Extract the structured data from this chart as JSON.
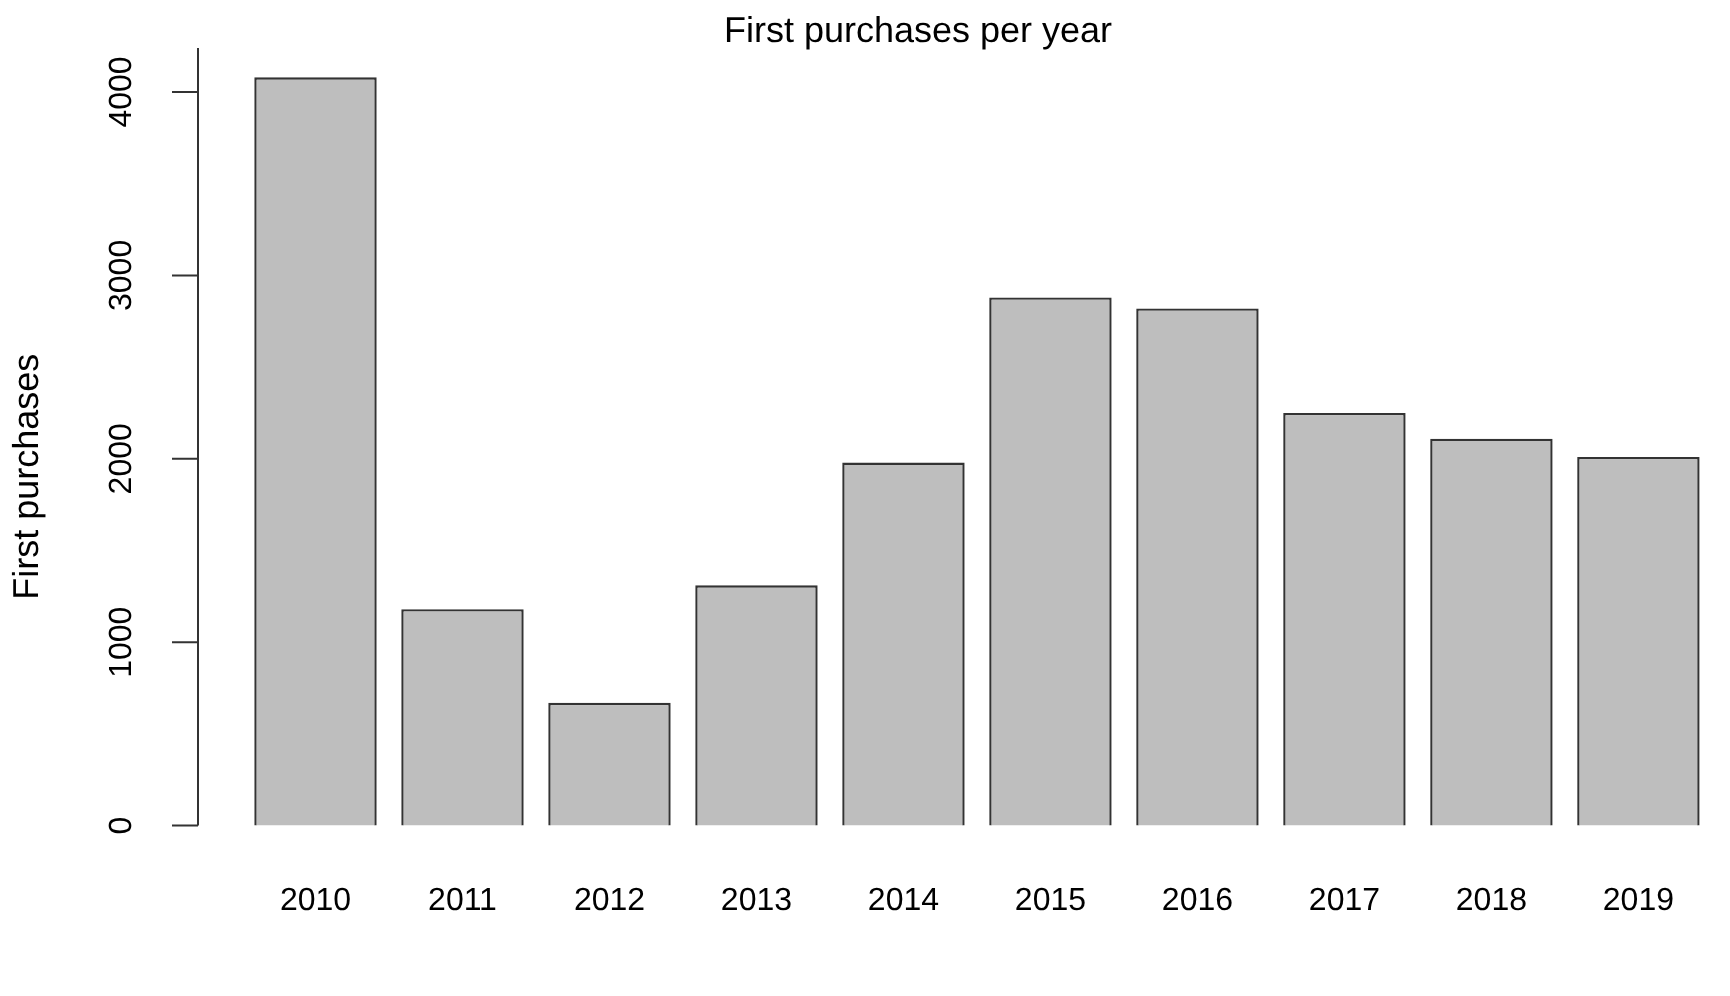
{
  "chart_data": {
    "type": "bar",
    "title": "First purchases per year",
    "ylabel": "First purchases",
    "categories": [
      "2010",
      "2011",
      "2012",
      "2013",
      "2014",
      "2015",
      "2016",
      "2017",
      "2018",
      "2019"
    ],
    "values": [
      4080,
      1180,
      670,
      1310,
      1980,
      2880,
      2820,
      2250,
      2110,
      2010
    ],
    "color": "#bebebe",
    "ylim": [
      0,
      4240
    ],
    "yticks": [
      0,
      1000,
      2000,
      3000,
      4000
    ],
    "grid": false,
    "legend": false
  }
}
